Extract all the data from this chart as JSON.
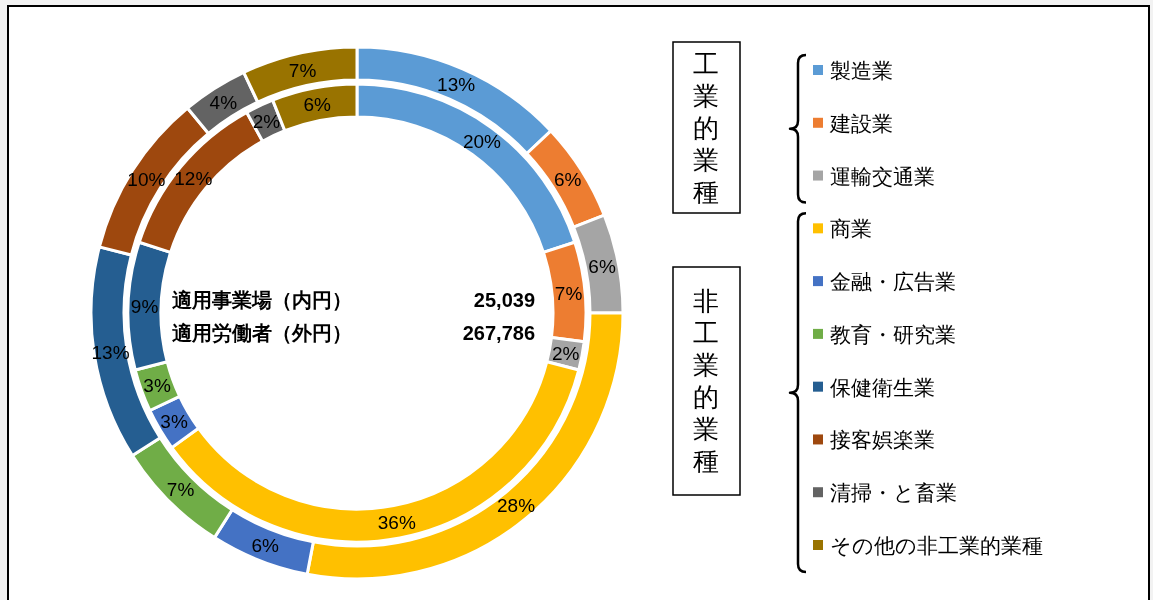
{
  "chart_data": {
    "type": "donut",
    "categories": [
      "製造業",
      "建設業",
      "運輸交通業",
      "商業",
      "金融・広告業",
      "教育・研究業",
      "保健衛生業",
      "接客娯楽業",
      "清掃・と畜業",
      "その他の非工業的業種"
    ],
    "colors": [
      "#5b9bd5",
      "#ed7d31",
      "#a5a5a5",
      "#ffc000",
      "#4472c4",
      "#70ad47",
      "#255e91",
      "#9e480e",
      "#636363",
      "#997300"
    ],
    "series": [
      {
        "values": [
          20,
          7,
          2,
          36,
          3,
          3,
          9,
          12,
          2,
          6
        ],
        "value_labels": [
          "20%",
          "7%",
          "2%",
          "36%",
          "3%",
          "3%",
          "9%",
          "12%",
          "2%",
          "6%"
        ]
      },
      {
        "values": [
          13,
          6,
          6,
          28,
          6,
          7,
          13,
          10,
          4,
          7
        ],
        "value_labels": [
          "13%",
          "6%",
          "6%",
          "28%",
          "6%",
          "7%",
          "13%",
          "10%",
          "4%",
          "7%"
        ]
      }
    ],
    "totals": [
      "25,039",
      "267,786"
    ],
    "annotations": [
      "工業的業種",
      "非工業的業種",
      "適用事業場（内円）",
      "適用労働者（外円）"
    ],
    "legend": "right"
  }
}
